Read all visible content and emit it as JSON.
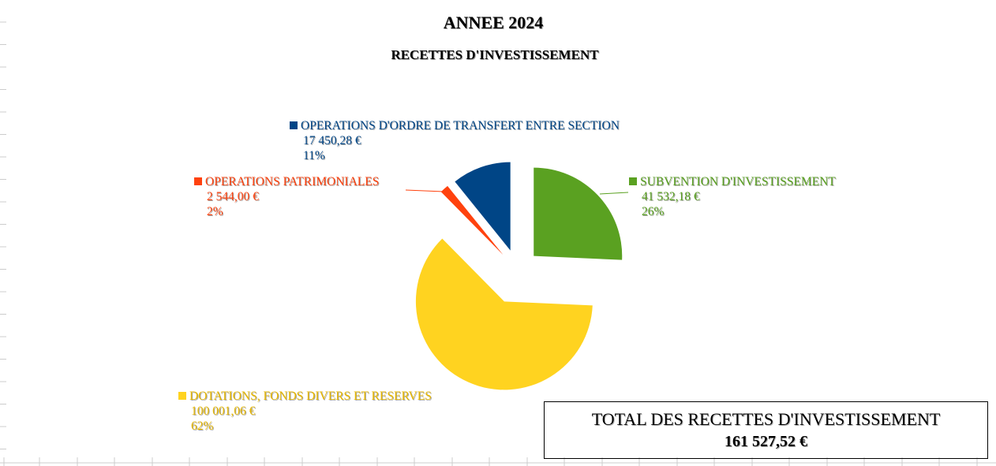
{
  "chart_data": {
    "type": "pie",
    "title": "ANNEE 2024",
    "subtitle": "RECETTES D'INVESTISSEMENT",
    "slices": [
      {
        "name": "SUBVENTION D'INVESTISSEMENT",
        "value_label": "41 532,18 €",
        "value": 41532.18,
        "percent_label": "26%",
        "color": "#5aa121"
      },
      {
        "name": "DOTATIONS, FONDS DIVERS ET RESERVES",
        "value_label": "100 001,06 €",
        "value": 100001.06,
        "percent_label": "62%",
        "color": "#ffd320"
      },
      {
        "name": "OPERATIONS PATRIMONIALES",
        "value_label": "2 544,00 €",
        "value": 2544.0,
        "percent_label": "2%",
        "color": "#ff420e"
      },
      {
        "name": "OPERATIONS D'ORDRE DE TRANSFERT ENTRE SECTION",
        "value_label": "17 450,28 €",
        "value": 17450.28,
        "percent_label": "11%",
        "color": "#004586"
      }
    ],
    "legend": "none (data labels)"
  },
  "total": {
    "label": "TOTAL DES RECETTES D'INVESTISSEMENT",
    "value": "161 527,52 €"
  }
}
